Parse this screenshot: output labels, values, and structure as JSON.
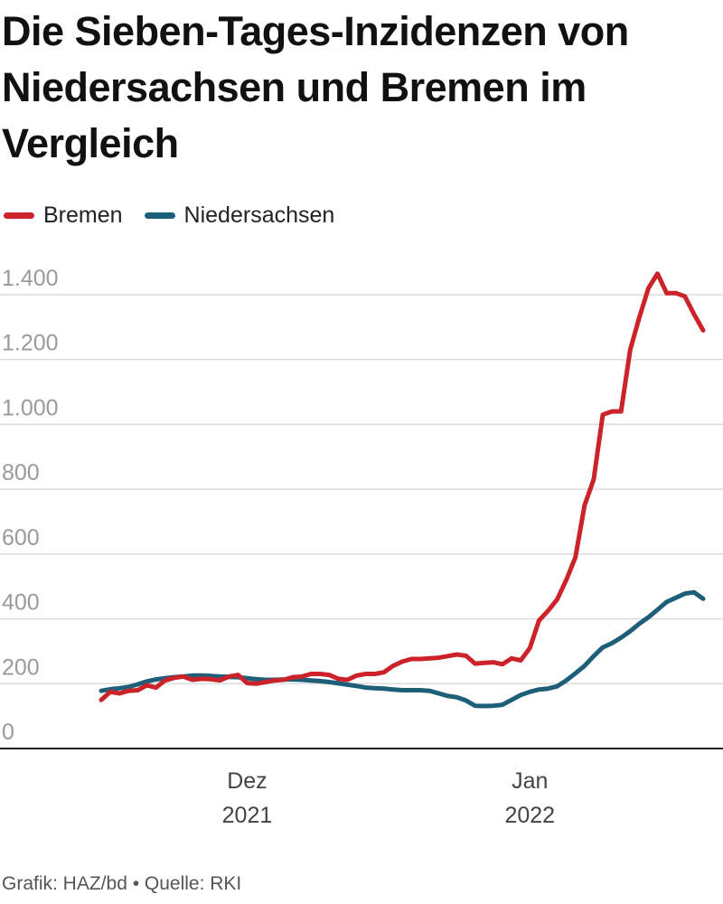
{
  "chart_data": {
    "type": "line",
    "title": "Die Sieben-Tages-Inzidenzen von Niedersachsen und Bremen im Vergleich",
    "legend_position": "top-left",
    "grid": true,
    "ylim": [
      0,
      1400
    ],
    "y_ticks": [
      0,
      200,
      400,
      600,
      800,
      1000,
      1200,
      1400
    ],
    "y_tick_labels": [
      "0",
      "200",
      "400",
      "600",
      "800",
      "1.000",
      "1.200",
      "1.400"
    ],
    "x_range": [
      "2021-11-15",
      "2022-01-27"
    ],
    "x_ticks": [
      {
        "date": "2021-12-01",
        "line1": "Dez",
        "line2": "2021"
      },
      {
        "date": "2022-01-01",
        "line1": "Jan",
        "line2": "2022"
      }
    ],
    "series": [
      {
        "name": "Bremen",
        "color": "#cc2229",
        "points": [
          [
            "2021-11-15",
            150
          ],
          [
            "2021-11-16",
            175
          ],
          [
            "2021-11-17",
            170
          ],
          [
            "2021-11-18",
            178
          ],
          [
            "2021-11-19",
            180
          ],
          [
            "2021-11-20",
            195
          ],
          [
            "2021-11-21",
            188
          ],
          [
            "2021-11-22",
            210
          ],
          [
            "2021-11-23",
            218
          ],
          [
            "2021-11-24",
            222
          ],
          [
            "2021-11-25",
            212
          ],
          [
            "2021-11-26",
            215
          ],
          [
            "2021-11-27",
            214
          ],
          [
            "2021-11-28",
            210
          ],
          [
            "2021-11-29",
            222
          ],
          [
            "2021-11-30",
            227
          ],
          [
            "2021-12-01",
            202
          ],
          [
            "2021-12-02",
            200
          ],
          [
            "2021-12-03",
            205
          ],
          [
            "2021-12-04",
            210
          ],
          [
            "2021-12-05",
            212
          ],
          [
            "2021-12-06",
            220
          ],
          [
            "2021-12-07",
            222
          ],
          [
            "2021-12-08",
            230
          ],
          [
            "2021-12-09",
            230
          ],
          [
            "2021-12-10",
            227
          ],
          [
            "2021-12-11",
            215
          ],
          [
            "2021-12-12",
            212
          ],
          [
            "2021-12-13",
            225
          ],
          [
            "2021-12-14",
            230
          ],
          [
            "2021-12-15",
            230
          ],
          [
            "2021-12-16",
            235
          ],
          [
            "2021-12-17",
            255
          ],
          [
            "2021-12-18",
            268
          ],
          [
            "2021-12-19",
            276
          ],
          [
            "2021-12-20",
            276
          ],
          [
            "2021-12-21",
            278
          ],
          [
            "2021-12-22",
            280
          ],
          [
            "2021-12-23",
            285
          ],
          [
            "2021-12-24",
            290
          ],
          [
            "2021-12-25",
            286
          ],
          [
            "2021-12-26",
            262
          ],
          [
            "2021-12-27",
            264
          ],
          [
            "2021-12-28",
            266
          ],
          [
            "2021-12-29",
            260
          ],
          [
            "2021-12-30",
            278
          ],
          [
            "2021-12-31",
            272
          ],
          [
            "2022-01-01",
            310
          ],
          [
            "2022-01-02",
            395
          ],
          [
            "2022-01-03",
            425
          ],
          [
            "2022-01-04",
            460
          ],
          [
            "2022-01-05",
            520
          ],
          [
            "2022-01-06",
            590
          ],
          [
            "2022-01-07",
            750
          ],
          [
            "2022-01-08",
            830
          ],
          [
            "2022-01-09",
            1030
          ],
          [
            "2022-01-10",
            1040
          ],
          [
            "2022-01-11",
            1040
          ],
          [
            "2022-01-12",
            1230
          ],
          [
            "2022-01-13",
            1330
          ],
          [
            "2022-01-14",
            1420
          ],
          [
            "2022-01-15",
            1465
          ],
          [
            "2022-01-16",
            1405
          ],
          [
            "2022-01-17",
            1405
          ],
          [
            "2022-01-18",
            1395
          ],
          [
            "2022-01-19",
            1340
          ],
          [
            "2022-01-20",
            1290
          ]
        ]
      },
      {
        "name": "Niedersachsen",
        "color": "#1d5f79",
        "points": [
          [
            "2021-11-15",
            178
          ],
          [
            "2021-11-16",
            183
          ],
          [
            "2021-11-17",
            186
          ],
          [
            "2021-11-18",
            190
          ],
          [
            "2021-11-19",
            198
          ],
          [
            "2021-11-20",
            207
          ],
          [
            "2021-11-21",
            213
          ],
          [
            "2021-11-22",
            217
          ],
          [
            "2021-11-23",
            220
          ],
          [
            "2021-11-24",
            222
          ],
          [
            "2021-11-25",
            225
          ],
          [
            "2021-11-26",
            225
          ],
          [
            "2021-11-27",
            224
          ],
          [
            "2021-11-28",
            222
          ],
          [
            "2021-11-29",
            221
          ],
          [
            "2021-11-30",
            220
          ],
          [
            "2021-12-01",
            217
          ],
          [
            "2021-12-02",
            214
          ],
          [
            "2021-12-03",
            212
          ],
          [
            "2021-12-04",
            212
          ],
          [
            "2021-12-05",
            213
          ],
          [
            "2021-12-06",
            213
          ],
          [
            "2021-12-07",
            212
          ],
          [
            "2021-12-08",
            210
          ],
          [
            "2021-12-09",
            208
          ],
          [
            "2021-12-10",
            205
          ],
          [
            "2021-12-11",
            201
          ],
          [
            "2021-12-12",
            197
          ],
          [
            "2021-12-13",
            193
          ],
          [
            "2021-12-14",
            188
          ],
          [
            "2021-12-15",
            186
          ],
          [
            "2021-12-16",
            185
          ],
          [
            "2021-12-17",
            182
          ],
          [
            "2021-12-18",
            180
          ],
          [
            "2021-12-19",
            180
          ],
          [
            "2021-12-20",
            180
          ],
          [
            "2021-12-21",
            178
          ],
          [
            "2021-12-22",
            170
          ],
          [
            "2021-12-23",
            162
          ],
          [
            "2021-12-24",
            158
          ],
          [
            "2021-12-25",
            148
          ],
          [
            "2021-12-26",
            132
          ],
          [
            "2021-12-27",
            131
          ],
          [
            "2021-12-28",
            132
          ],
          [
            "2021-12-29",
            135
          ],
          [
            "2021-12-30",
            150
          ],
          [
            "2021-12-31",
            165
          ],
          [
            "2022-01-01",
            175
          ],
          [
            "2022-01-02",
            182
          ],
          [
            "2022-01-03",
            185
          ],
          [
            "2022-01-04",
            192
          ],
          [
            "2022-01-05",
            210
          ],
          [
            "2022-01-06",
            232
          ],
          [
            "2022-01-07",
            255
          ],
          [
            "2022-01-08",
            285
          ],
          [
            "2022-01-09",
            312
          ],
          [
            "2022-01-10",
            325
          ],
          [
            "2022-01-11",
            342
          ],
          [
            "2022-01-12",
            362
          ],
          [
            "2022-01-13",
            385
          ],
          [
            "2022-01-14",
            405
          ],
          [
            "2022-01-15",
            428
          ],
          [
            "2022-01-16",
            452
          ],
          [
            "2022-01-17",
            465
          ],
          [
            "2022-01-18",
            478
          ],
          [
            "2022-01-19",
            482
          ],
          [
            "2022-01-20",
            462
          ]
        ]
      }
    ]
  },
  "footer": "Grafik: HAZ/bd • Quelle: RKI"
}
